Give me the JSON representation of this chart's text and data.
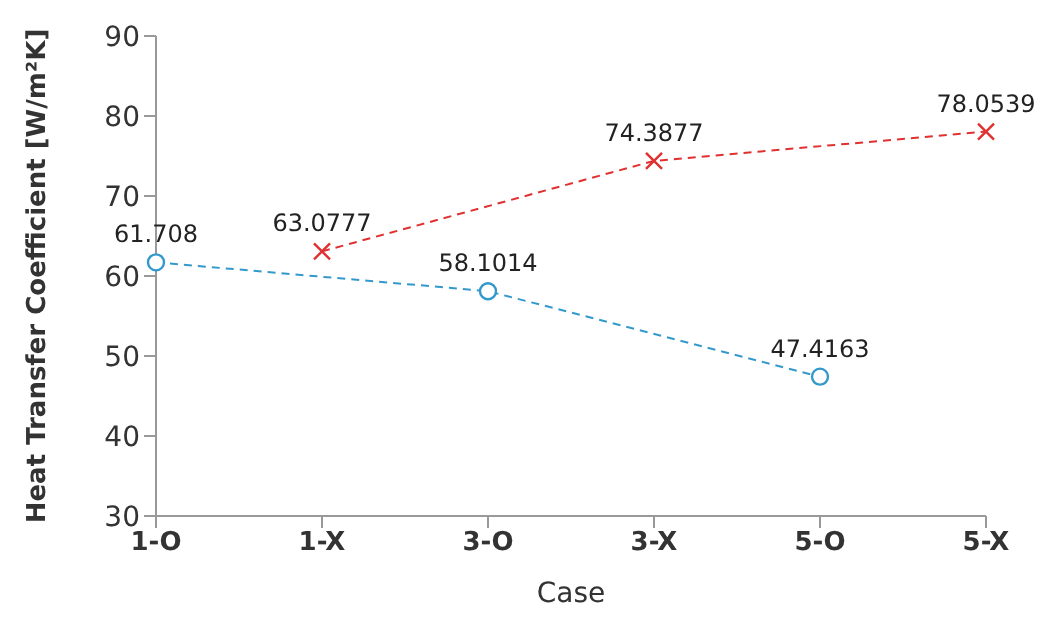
{
  "chart_data": {
    "type": "line",
    "xlabel": "Case",
    "ylabel": "Heat Transfer Coefficient [W/m²K]",
    "categories": [
      "1-O",
      "1-X",
      "3-O",
      "3-X",
      "5-O",
      "5-X"
    ],
    "series": [
      {
        "color": "#3399cc",
        "marker": "circle",
        "values": [
          61.708,
          null,
          58.1014,
          null,
          47.4163,
          null
        ]
      },
      {
        "color": "#e03030",
        "marker": "cross",
        "values": [
          null,
          63.0777,
          null,
          74.3877,
          null,
          78.0539
        ]
      }
    ],
    "ylim": [
      30,
      90
    ],
    "yticks": [
      30,
      40,
      50,
      60,
      70,
      80,
      90
    ],
    "grid": false,
    "legend": false,
    "line_style": "dashed",
    "data_labels": true
  }
}
